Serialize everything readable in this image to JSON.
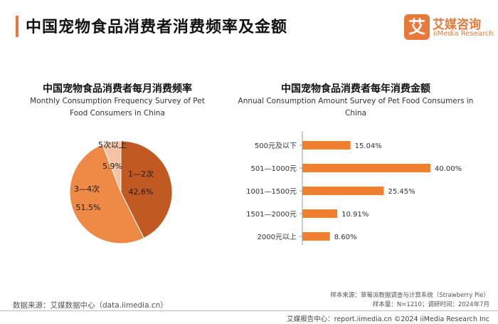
{
  "header": {
    "title": "中国宠物食品消费者消费频率及金额",
    "brand_badge": "艾",
    "brand_cn": "艾媒咨询",
    "brand_en": "iiMedia Research",
    "accent_color": "#e8793a"
  },
  "left_chart": {
    "title_cn": "中国宠物食品消费者每月消费频率",
    "title_en": "Monthly Consumption Frequency Survey of Pet Food Consumers in China"
  },
  "right_chart": {
    "title_cn": "中国宠物食品消费者每年消费金额",
    "title_en": "Annual Consumption Amount Survey of Pet Food Consumers in China"
  },
  "chart_data": [
    {
      "type": "pie",
      "title": "中国宠物食品消费者每月消费频率",
      "slices": [
        {
          "label": "1—2次",
          "value": 42.6,
          "value_label": "42.6%",
          "color": "#c05a22"
        },
        {
          "label": "3—4次",
          "value": 51.5,
          "value_label": "51.5%",
          "color": "#ee8a45"
        },
        {
          "label": "5次以上",
          "value": 5.9,
          "value_label": "5.9%",
          "color": "#f6c3a6"
        }
      ]
    },
    {
      "type": "bar",
      "orientation": "horizontal",
      "title": "中国宠物食品消费者每年消费金额",
      "categories": [
        "500元及以下",
        "501—1000元",
        "1001—1500元",
        "1501—2000元",
        "2000元以上"
      ],
      "values": [
        15.04,
        40.0,
        25.45,
        10.91,
        8.6
      ],
      "value_labels": [
        "15.04%",
        "40.00%",
        "25.45%",
        "10.91%",
        "8.60%"
      ],
      "xlim": [
        0,
        40
      ],
      "color": "#ee8030"
    }
  ],
  "sources": {
    "left": "数据来源：艾媒数据中心（data.iimedia.cn）",
    "sample_source": "样本来源：草莓派数据调查与计算系统（Strawberry Pie）",
    "sample_size": "样本量：N=1210；调研时间：2024年7月"
  },
  "footer": {
    "text": "艾媒报告中心：report.iimedia.cn   ©2024 iiMedia Research Inc"
  }
}
